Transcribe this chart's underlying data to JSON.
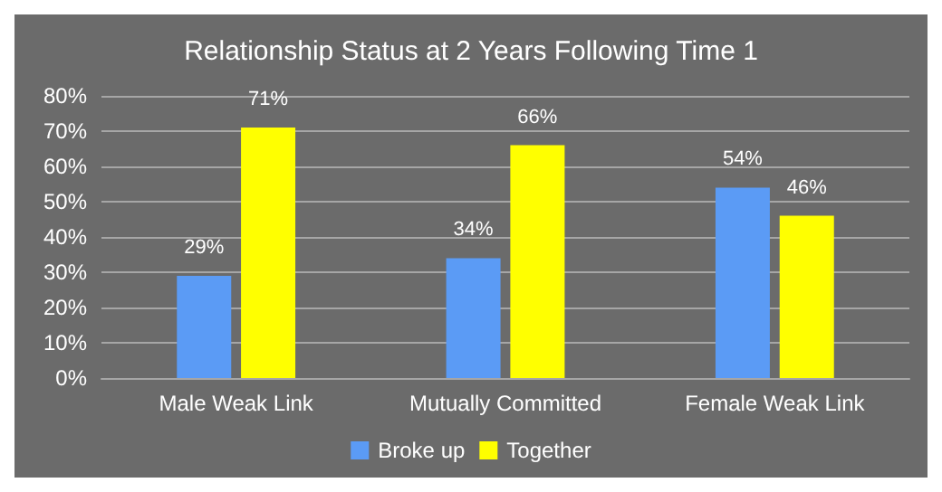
{
  "chart_data": {
    "type": "bar",
    "title": "Relationship Status at 2 Years Following Time 1",
    "categories": [
      "Male Weak Link",
      "Mutually Committed",
      "Female Weak Link"
    ],
    "series": [
      {
        "name": "Broke up",
        "color": "#5b9bf5",
        "values": [
          29,
          34,
          54
        ],
        "value_labels": [
          "29%",
          "34%",
          "54%"
        ]
      },
      {
        "name": "Together",
        "color": "#ffff00",
        "values": [
          71,
          66,
          46
        ],
        "value_labels": [
          "71%",
          "66%",
          "46%"
        ]
      }
    ],
    "ylim": [
      0,
      80
    ],
    "yticks": [
      {
        "value": 0,
        "label": "0%"
      },
      {
        "value": 10,
        "label": "10%"
      },
      {
        "value": 20,
        "label": "20%"
      },
      {
        "value": 30,
        "label": "30%"
      },
      {
        "value": 40,
        "label": "40%"
      },
      {
        "value": 50,
        "label": "50%"
      },
      {
        "value": 60,
        "label": "60%"
      },
      {
        "value": 70,
        "label": "70%"
      },
      {
        "value": 80,
        "label": "80%"
      }
    ],
    "grid": "y",
    "legend": "bottom"
  }
}
